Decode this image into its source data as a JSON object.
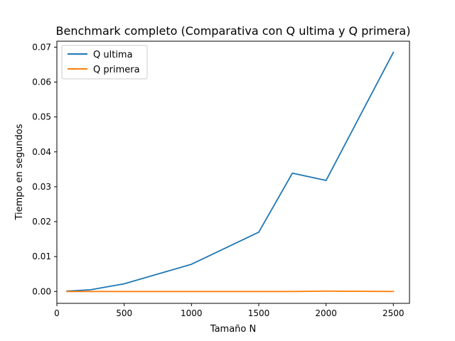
{
  "chart_data": {
    "type": "line",
    "title": "Benchmark completo (Comparativa con Q ultima y Q primera)",
    "xlabel": "Tamaño N",
    "ylabel": "Tiempo en segundos",
    "xlim": [
      0,
      2620
    ],
    "ylim": [
      -0.0034,
      0.0717
    ],
    "xticks": [
      0,
      500,
      1000,
      1500,
      2000,
      2500
    ],
    "yticks": [
      0.0,
      0.01,
      0.02,
      0.03,
      0.04,
      0.05,
      0.06,
      0.07
    ],
    "xtick_labels": [
      "0",
      "500",
      "1000",
      "1500",
      "2000",
      "2500"
    ],
    "ytick_labels": [
      "0.00",
      "0.01",
      "0.02",
      "0.03",
      "0.04",
      "0.05",
      "0.06",
      "0.07"
    ],
    "grid": false,
    "legend_position": "upper left",
    "series": [
      {
        "name": "Q ultima",
        "color": "#1f77b4",
        "x": [
          75,
          250,
          500,
          1000,
          1500,
          1750,
          2000,
          2500
        ],
        "y": [
          0.0001,
          0.0005,
          0.0022,
          0.0078,
          0.017,
          0.0339,
          0.0318,
          0.0685
        ]
      },
      {
        "name": "Q primera",
        "color": "#ff7f0e",
        "x": [
          75,
          250,
          500,
          1000,
          1500,
          1750,
          2000,
          2500
        ],
        "y": [
          0.0,
          0.0,
          0.0,
          0.0,
          0.0,
          0.0,
          0.0001,
          0.0
        ]
      }
    ]
  }
}
